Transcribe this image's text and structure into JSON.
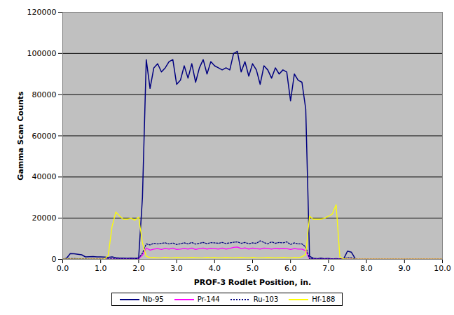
{
  "chart_data": {
    "type": "line",
    "x_label": "PROF-3 Rodlet Position, in.",
    "y_label": "Gamma Scan Counts",
    "xlim": [
      0,
      10
    ],
    "xticks": [
      {
        "value": 0,
        "label": "0.0"
      },
      {
        "value": 1,
        "label": "1.0"
      },
      {
        "value": 2,
        "label": "2.0"
      },
      {
        "value": 3,
        "label": "3.0"
      },
      {
        "value": 4,
        "label": "4.0"
      },
      {
        "value": 5,
        "label": "5.0"
      },
      {
        "value": 6,
        "label": "6.0"
      },
      {
        "value": 7,
        "label": "7.0"
      },
      {
        "value": 8,
        "label": "8.0"
      },
      {
        "value": 9,
        "label": "9.0"
      },
      {
        "value": 10,
        "label": "10.0"
      }
    ],
    "ylim": [
      0,
      120000
    ],
    "yticks": [
      0,
      20000,
      40000,
      60000,
      80000,
      100000,
      120000
    ],
    "grid": true,
    "legend": "bottom",
    "x": [
      0,
      0.1,
      0.2,
      0.3,
      0.4,
      0.5,
      0.6,
      0.7,
      0.8,
      0.9,
      1,
      1.1,
      1.2,
      1.3,
      1.4,
      1.5,
      1.6,
      1.7,
      1.8,
      1.9,
      2,
      2.1,
      2.2,
      2.3,
      2.4,
      2.5,
      2.6,
      2.7,
      2.8,
      2.9,
      3,
      3.1,
      3.2,
      3.3,
      3.4,
      3.5,
      3.6,
      3.7,
      3.8,
      3.9,
      4,
      4.1,
      4.2,
      4.3,
      4.4,
      4.5,
      4.6,
      4.7,
      4.8,
      4.9,
      5,
      5.1,
      5.2,
      5.3,
      5.4,
      5.5,
      5.6,
      5.7,
      5.8,
      5.9,
      6,
      6.1,
      6.2,
      6.3,
      6.4,
      6.5,
      6.6,
      6.7,
      6.8,
      6.9,
      7,
      7.1,
      7.2,
      7.3,
      7.4,
      7.5,
      7.6,
      7.7,
      7.8,
      7.9,
      8,
      8.1,
      8.2,
      8.3,
      8.4,
      8.5,
      8.6,
      8.7,
      8.8,
      8.9,
      9,
      9.1,
      9.2,
      9.3,
      9.4,
      9.5,
      9.6,
      9.7,
      9.8,
      9.9,
      10
    ],
    "series": [
      {
        "name": "Nb-95",
        "color": "#000080",
        "line_style": "solid",
        "values": [
          0,
          500,
          2800,
          2700,
          2500,
          2200,
          1200,
          1300,
          1400,
          1200,
          1200,
          1100,
          900,
          1200,
          800,
          600,
          600,
          500,
          600,
          500,
          700,
          30000,
          97000,
          83000,
          93000,
          95000,
          91000,
          93000,
          96000,
          97000,
          85000,
          87000,
          94000,
          88000,
          95000,
          86000,
          93000,
          97000,
          90000,
          96000,
          94000,
          93000,
          92000,
          93000,
          92000,
          100000,
          101000,
          91000,
          96000,
          89000,
          95000,
          92000,
          85000,
          94000,
          92000,
          88000,
          93000,
          90000,
          92000,
          91000,
          77000,
          90000,
          87000,
          86000,
          73000,
          1500,
          500,
          300,
          600,
          300,
          400,
          200,
          300,
          200,
          300,
          4000,
          3500,
          500,
          null,
          null,
          null,
          null,
          null,
          null,
          null,
          null,
          null,
          null,
          null,
          null,
          null,
          null,
          null,
          null,
          null,
          null,
          null,
          null,
          null,
          null,
          null
        ]
      },
      {
        "name": "Pr-144",
        "color": "#ff00ff",
        "line_style": "solid",
        "values": [
          0,
          100,
          200,
          200,
          150,
          100,
          100,
          100,
          100,
          100,
          100,
          100,
          100,
          100,
          100,
          100,
          100,
          100,
          100,
          100,
          300,
          2000,
          5500,
          4500,
          5000,
          5200,
          4800,
          5300,
          5000,
          5500,
          4800,
          5000,
          5300,
          5000,
          5500,
          4800,
          5200,
          5500,
          5000,
          5400,
          5200,
          5000,
          5500,
          5000,
          5300,
          5800,
          6000,
          5200,
          5600,
          5000,
          5500,
          5200,
          5000,
          5500,
          5300,
          5000,
          5400,
          5100,
          5300,
          5200,
          4800,
          5200,
          5000,
          5000,
          4200,
          200,
          100,
          100,
          100,
          100,
          100,
          100,
          100,
          100,
          100,
          100,
          100,
          100,
          100,
          100,
          100,
          100,
          100,
          100,
          100,
          100,
          100,
          100,
          100,
          100,
          100,
          100,
          100,
          100,
          100,
          100,
          100,
          100,
          100,
          100,
          100
        ]
      },
      {
        "name": "Ru-103",
        "color": "#000080",
        "line_style": "dotted",
        "values": [
          200,
          300,
          400,
          400,
          300,
          300,
          300,
          200,
          200,
          200,
          200,
          200,
          200,
          200,
          200,
          200,
          200,
          200,
          200,
          200,
          500,
          3000,
          7500,
          7000,
          7800,
          7500,
          7800,
          8000,
          7500,
          8000,
          7200,
          7600,
          8000,
          7500,
          8200,
          7400,
          7800,
          8200,
          7600,
          8100,
          8000,
          7800,
          8200,
          7700,
          8000,
          8300,
          8500,
          7800,
          8200,
          7600,
          8000,
          7800,
          9000,
          8200,
          7500,
          8500,
          7800,
          8200,
          8000,
          8500,
          7200,
          8000,
          7500,
          7500,
          6000,
          400,
          200,
          200,
          200,
          200,
          200,
          200,
          200,
          200,
          200,
          800,
          700,
          200,
          100,
          100,
          100,
          100,
          100,
          100,
          100,
          100,
          100,
          100,
          100,
          100,
          100,
          100,
          100,
          100,
          100,
          100,
          100,
          100,
          100,
          100,
          100
        ]
      },
      {
        "name": "Hf-188",
        "color": "#ffff00",
        "line_style": "solid",
        "values": [
          100,
          100,
          100,
          100,
          100,
          100,
          100,
          100,
          100,
          100,
          100,
          100,
          2000,
          16000,
          23000,
          21000,
          19500,
          19500,
          20000,
          19000,
          20500,
          8000,
          1500,
          800,
          900,
          700,
          800,
          1000,
          800,
          700,
          900,
          800,
          700,
          800,
          900,
          800,
          700,
          800,
          1000,
          800,
          900,
          700,
          800,
          900,
          800,
          700,
          800,
          900,
          800,
          700,
          1000,
          800,
          700,
          800,
          900,
          800,
          700,
          800,
          900,
          800,
          700,
          900,
          800,
          1200,
          2500,
          21000,
          19500,
          19500,
          19500,
          20000,
          21000,
          22000,
          26500,
          1000,
          300,
          100,
          100,
          100,
          100,
          100,
          100,
          100,
          100,
          100,
          100,
          100,
          100,
          100,
          100,
          100,
          100,
          100,
          100,
          100,
          100,
          100,
          100,
          100,
          100,
          100,
          100
        ]
      }
    ]
  }
}
